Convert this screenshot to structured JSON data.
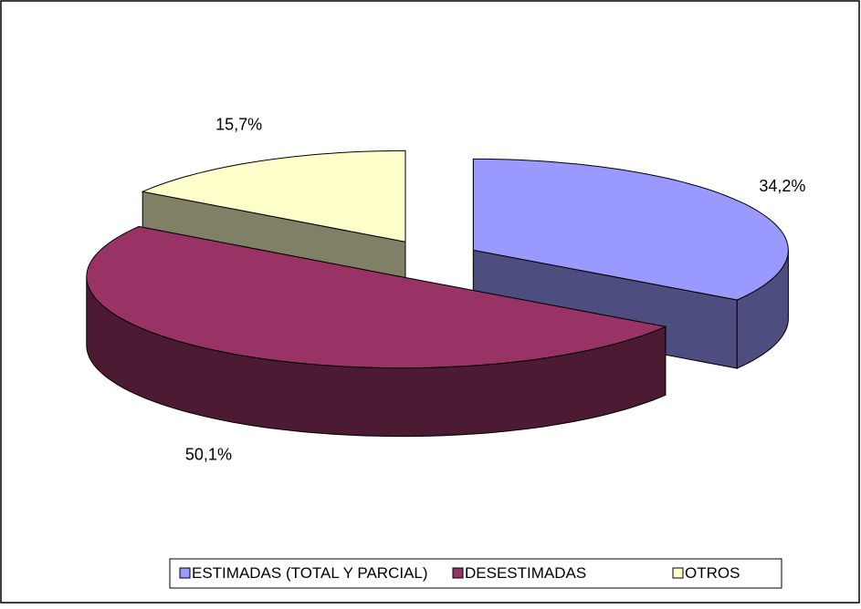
{
  "chart_data": {
    "type": "pie",
    "three_d": true,
    "exploded": true,
    "categories": [
      "ESTIMADAS (TOTAL Y PARCIAL)",
      "DESESTIMADAS",
      "OTROS"
    ],
    "values": [
      34.2,
      50.1,
      15.7
    ],
    "value_labels": [
      "34,2%",
      "50,1%",
      "15,7%"
    ],
    "colors": [
      "#9999ff",
      "#993366",
      "#ffffcc"
    ],
    "legend": "bottom"
  }
}
